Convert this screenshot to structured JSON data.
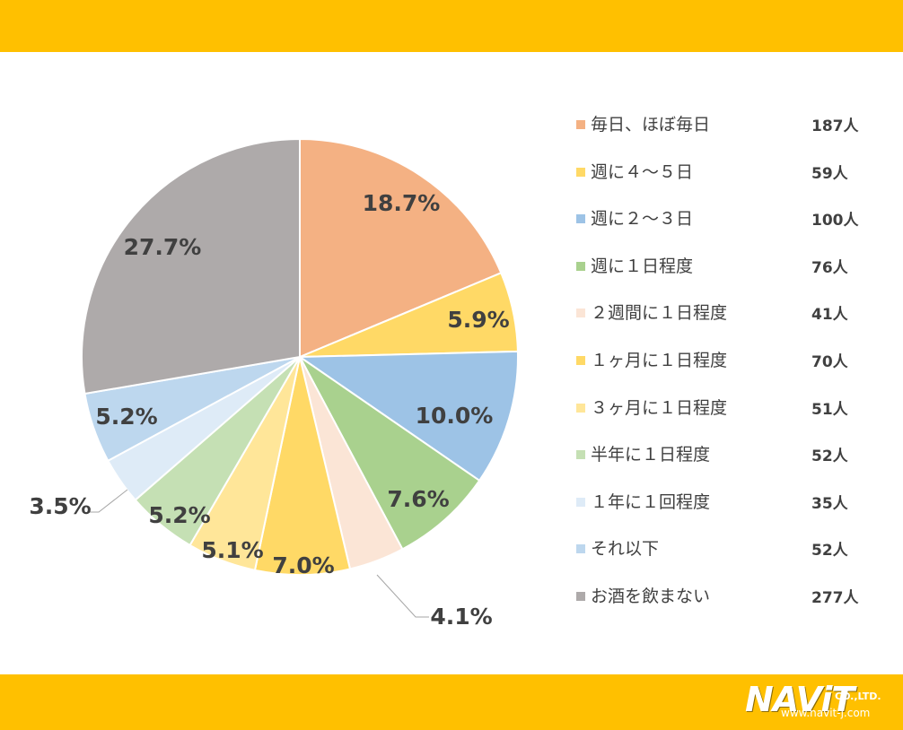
{
  "chart_data": {
    "type": "pie",
    "title": "",
    "slices": [
      {
        "label": "毎日、ほぼ毎日",
        "value": 187,
        "percent_label": "18.7%",
        "color": "#f4b183"
      },
      {
        "label": "週に４～５日",
        "value": 59,
        "percent_label": "5.9%",
        "color": "#ffd966"
      },
      {
        "label": "週に２～３日",
        "value": 100,
        "percent_label": "10.0%",
        "color": "#9dc3e6"
      },
      {
        "label": "週に１日程度",
        "value": 76,
        "percent_label": "7.6%",
        "color": "#a9d18e"
      },
      {
        "label": "２週間に１日程度",
        "value": 41,
        "percent_label": "4.1%",
        "color": "#fbe5d6"
      },
      {
        "label": "１ヶ月に１日程度",
        "value": 70,
        "percent_label": "7.0%",
        "color": "#ffd966"
      },
      {
        "label": "３ヶ月に１日程度",
        "value": 51,
        "percent_label": "5.1%",
        "color": "#ffe699"
      },
      {
        "label": "半年に１日程度",
        "value": 52,
        "percent_label": "5.2%",
        "color": "#c5e0b4"
      },
      {
        "label": "１年に１回程度",
        "value": 35,
        "percent_label": "3.5%",
        "color": "#deebf7"
      },
      {
        "label": "それ以下",
        "value": 52,
        "percent_label": "5.2%",
        "color": "#bdd7ee"
      },
      {
        "label": "お酒を飲まない",
        "value": 277,
        "percent_label": "27.7%",
        "color": "#aeaaaa"
      }
    ],
    "legend_position": "right",
    "count_unit": "人"
  },
  "logo": {
    "main": "NAViT",
    "suffix": "CO.,LTD.",
    "url": "www.navit-j.com"
  },
  "colors": {
    "band": "#ffc000",
    "text": "#404040"
  }
}
